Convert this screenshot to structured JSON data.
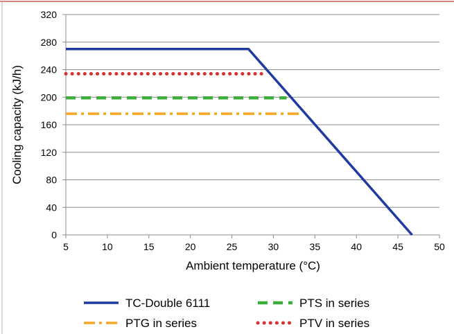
{
  "chart_data": {
    "type": "line",
    "title": "",
    "xlabel": "Ambient temperature (°C)",
    "ylabel": "Cooling capacity (kJ/h)",
    "xlim": [
      5,
      50
    ],
    "ylim": [
      0,
      320
    ],
    "x_ticks": [
      5,
      10,
      15,
      20,
      25,
      30,
      35,
      40,
      45,
      50
    ],
    "y_ticks": [
      0,
      40,
      80,
      120,
      160,
      200,
      240,
      280,
      320
    ],
    "grid": "horizontal",
    "legend_position": "bottom",
    "series": [
      {
        "name": "TC-Double 6111",
        "style": "solid",
        "color": "#1f3aa0",
        "points": [
          [
            5,
            270
          ],
          [
            27,
            270
          ],
          [
            46.7,
            0
          ]
        ]
      },
      {
        "name": "PTG in series",
        "style": "dash-dot",
        "color": "#f5a623",
        "points": [
          [
            5,
            176
          ],
          [
            33.3,
            176
          ]
        ]
      },
      {
        "name": "PTS in series",
        "style": "dashed",
        "color": "#3cae3c",
        "points": [
          [
            5,
            199
          ],
          [
            31.6,
            199
          ]
        ]
      },
      {
        "name": "PTV in series",
        "style": "dotted",
        "color": "#d9312e",
        "points": [
          [
            5,
            234
          ],
          [
            29.1,
            234
          ]
        ]
      }
    ]
  }
}
